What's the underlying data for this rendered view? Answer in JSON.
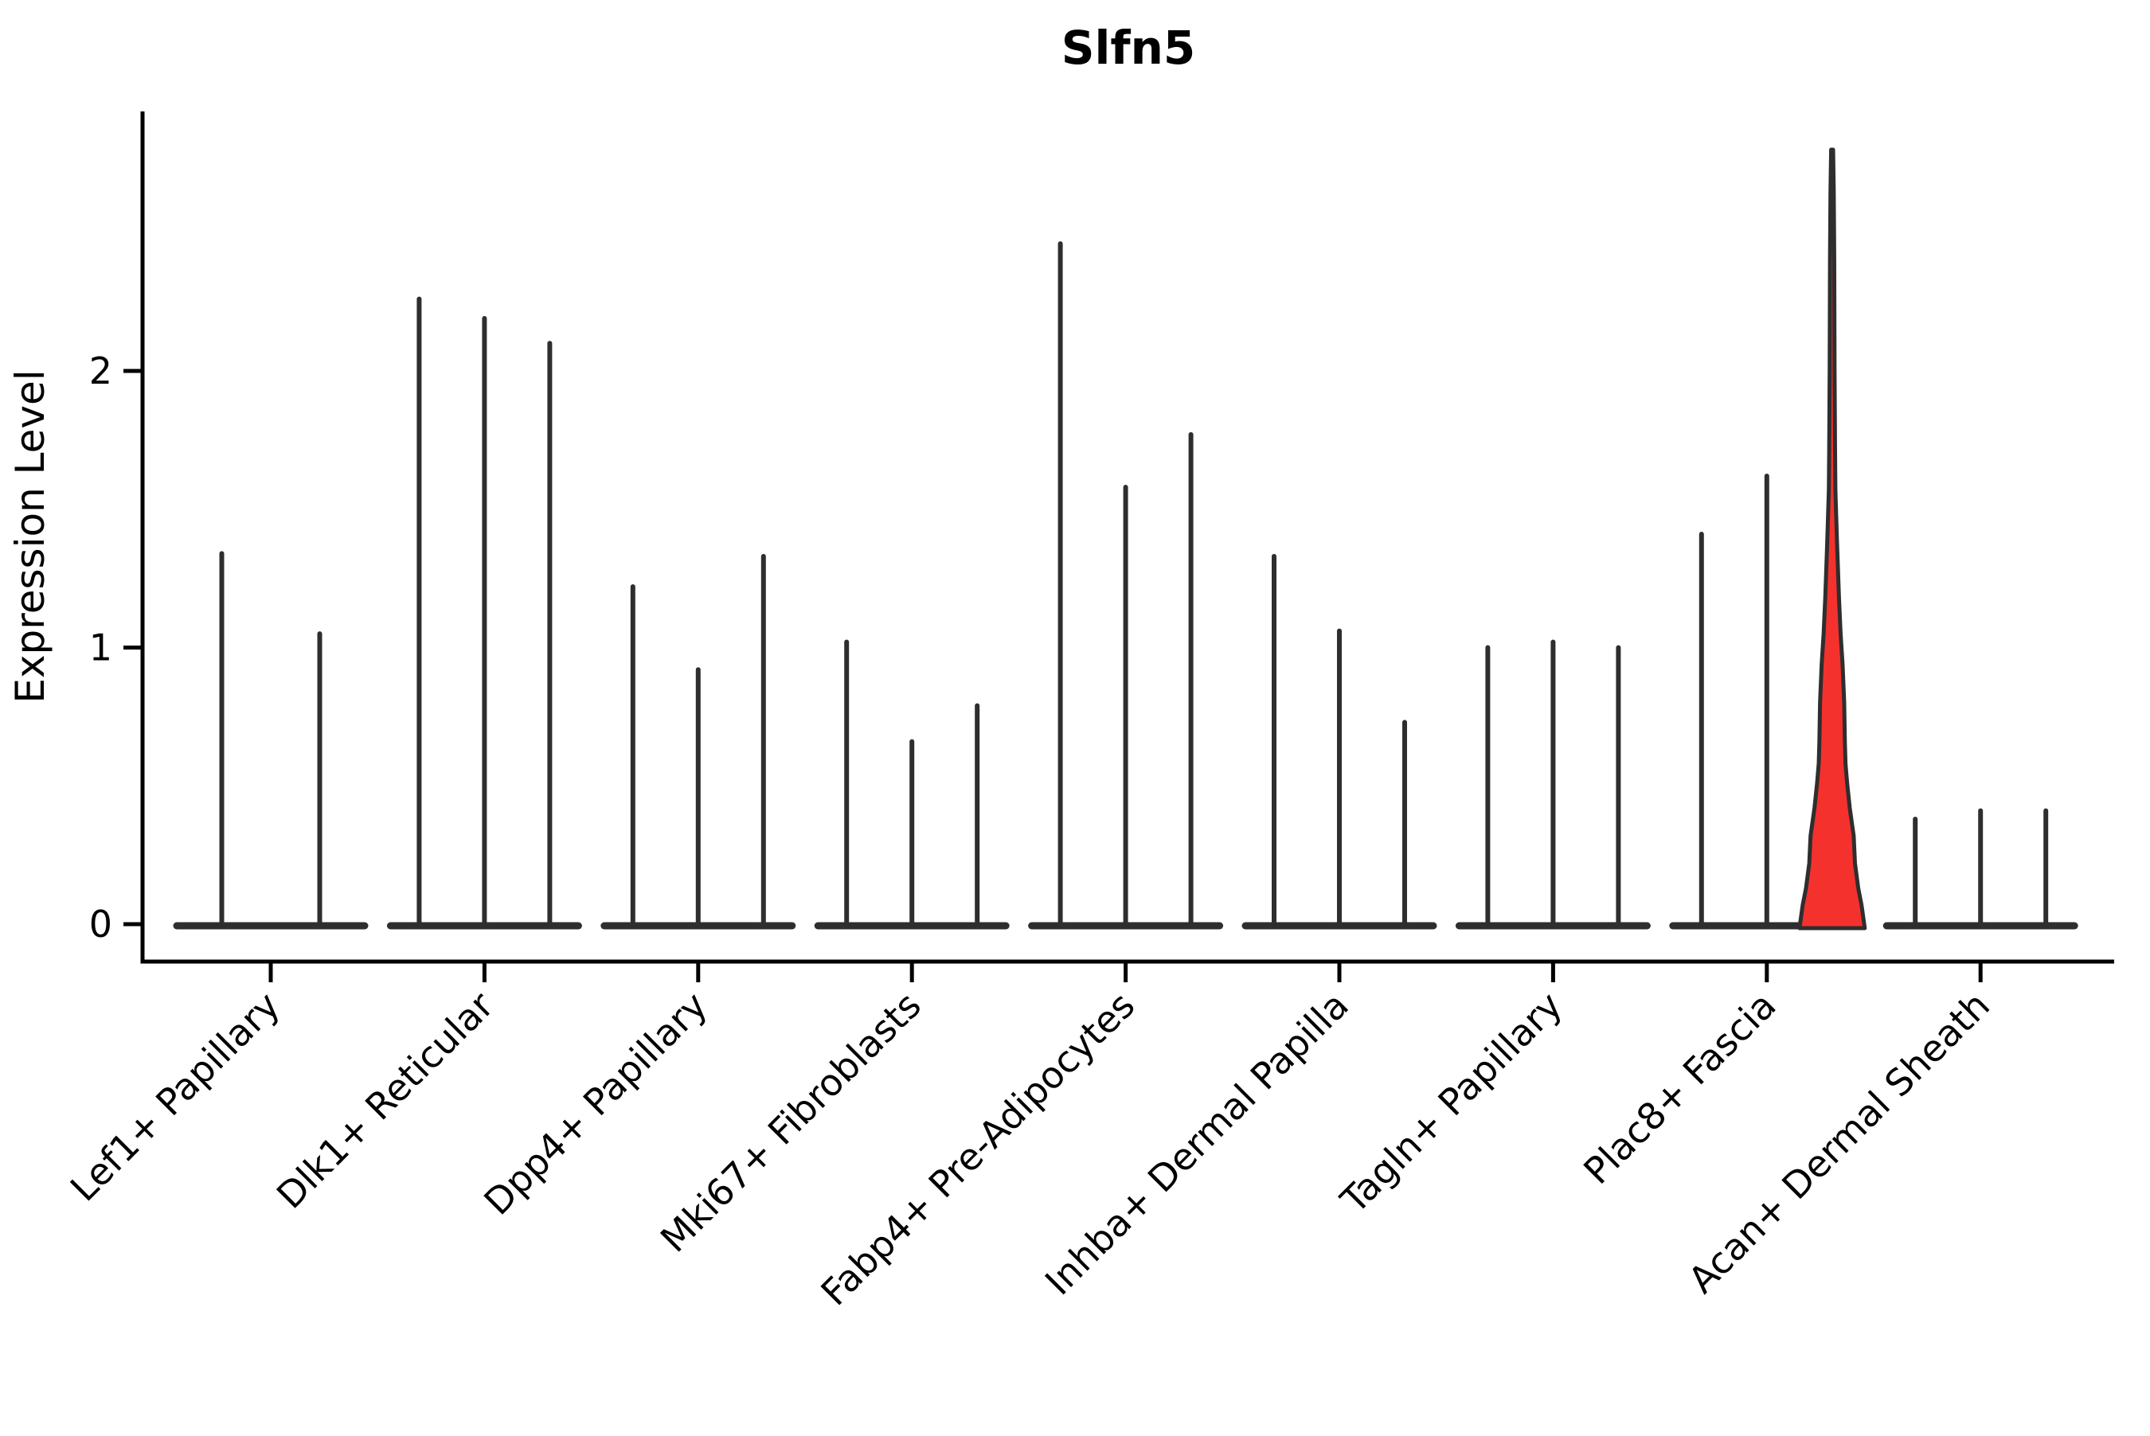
{
  "chart_data": {
    "type": "violin",
    "title": "Slfn5",
    "xlabel": "",
    "ylabel": "Expression Level",
    "yticks": [
      0,
      1,
      2
    ],
    "ylim": [
      -0.14,
      2.94
    ],
    "grid": false,
    "legend": "none",
    "x_tick_rotation_deg": 45,
    "categories": [
      "Lef1+ Papillary",
      "Dlk1+ Reticular",
      "Dpp4+ Papillary",
      "Mki67+ Fibroblasts",
      "Fabp4+ Pre-Adipocytes",
      "Inhba+ Dermal Papilla",
      "Tagln+ Papillary",
      "Plac8+ Fascia",
      "Acan+ Dermal Sheath"
    ],
    "groups": [
      {
        "label": "Lef1+ Papillary",
        "violins": [
          {
            "max": 1.34
          },
          {
            "max": 1.05
          }
        ]
      },
      {
        "label": "Dlk1+ Reticular",
        "violins": [
          {
            "max": 2.26
          },
          {
            "max": 2.19
          },
          {
            "max": 2.1
          }
        ]
      },
      {
        "label": "Dpp4+ Papillary",
        "violins": [
          {
            "max": 1.22
          },
          {
            "max": 0.92
          },
          {
            "max": 1.33
          }
        ]
      },
      {
        "label": "Mki67+ Fibroblasts",
        "violins": [
          {
            "max": 1.02
          },
          {
            "max": 0.66
          },
          {
            "max": 0.79
          }
        ]
      },
      {
        "label": "Fabp4+ Pre-Adipocytes",
        "violins": [
          {
            "max": 2.46
          },
          {
            "max": 1.58
          },
          {
            "max": 1.77
          }
        ]
      },
      {
        "label": "Inhba+ Dermal Papilla",
        "violins": [
          {
            "max": 1.33
          },
          {
            "max": 1.06
          },
          {
            "max": 0.73
          }
        ]
      },
      {
        "label": "Tagln+ Papillary",
        "violins": [
          {
            "max": 1.0
          },
          {
            "max": 1.02
          },
          {
            "max": 1.0
          }
        ]
      },
      {
        "label": "Plac8+ Fascia",
        "violins": [
          {
            "max": 1.41
          },
          {
            "max": 1.62
          },
          {
            "max": 2.8,
            "filled": true,
            "profile": [
              [
                0.0,
                1.0
              ],
              [
                0.07,
                0.9
              ],
              [
                0.13,
                0.8
              ],
              [
                0.22,
                0.7
              ],
              [
                0.32,
                0.66
              ],
              [
                0.42,
                0.54
              ],
              [
                0.51,
                0.46
              ],
              [
                0.58,
                0.41
              ],
              [
                0.66,
                0.39
              ],
              [
                0.8,
                0.37
              ],
              [
                0.94,
                0.32
              ],
              [
                1.05,
                0.26
              ],
              [
                1.18,
                0.21
              ],
              [
                1.38,
                0.15
              ],
              [
                1.57,
                0.1
              ],
              [
                1.71,
                0.09
              ],
              [
                2.0,
                0.075
              ],
              [
                2.4,
                0.065
              ],
              [
                2.65,
                0.05
              ],
              [
                2.8,
                0.03
              ]
            ]
          }
        ]
      },
      {
        "label": "Acan+ Dermal Sheath",
        "violins": [
          {
            "max": 0.38
          },
          {
            "max": 0.41
          },
          {
            "max": 0.41
          }
        ]
      }
    ],
    "highlighted_violin": {
      "group": "Plac8+ Fascia",
      "index": 2,
      "max": 2.8
    },
    "colors": {
      "highlight_fill": "#f5312e",
      "violin_stroke": "#2e2e2e",
      "axis": "#000000",
      "text": "#000000",
      "background": "#ffffff"
    }
  }
}
